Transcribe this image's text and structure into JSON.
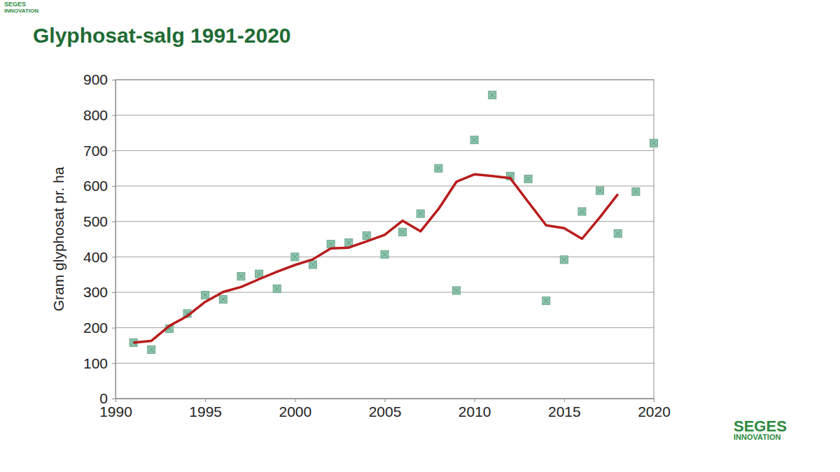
{
  "chart_data": {
    "type": "scatter",
    "title": "Glyphosat-salg 1991-2020",
    "y_label": "Gram glyphosat pr. ha",
    "logo": "SEGES",
    "logo_sub": "INNOVATION",
    "x": [
      1991,
      1992,
      1993,
      1994,
      1995,
      1996,
      1997,
      1998,
      1999,
      2000,
      2001,
      2002,
      2003,
      2004,
      2005,
      2006,
      2007,
      2008,
      2009,
      2010,
      2011,
      2012,
      2013,
      2014,
      2015,
      2016,
      2017,
      2018,
      2019,
      2020
    ],
    "series": [
      {
        "type": "scatter",
        "marker": "square",
        "color": "#8ac7ad",
        "values": [
          158,
          138,
          197,
          240,
          292,
          280,
          345,
          352,
          310,
          400,
          378,
          436,
          440,
          460,
          407,
          470,
          522,
          650,
          305,
          730,
          857,
          628,
          620,
          276,
          392,
          528,
          587,
          466,
          584,
          721
        ]
      },
      {
        "type": "line",
        "line_style": "solid",
        "color": "#b81c1c",
        "values": [
          158,
          163,
          205,
          233,
          273,
          301,
          315,
          337,
          358,
          377,
          393,
          424,
          426,
          444,
          462,
          502,
          472,
          535,
          612,
          633,
          628,
          622,
          555,
          489,
          481,
          451,
          512,
          577,
          null,
          null
        ]
      }
    ],
    "xlim": [
      1990,
      2020
    ],
    "xticks": [
      1990,
      1995,
      2000,
      2005,
      2010,
      2015,
      2020
    ],
    "ylim": [
      0,
      900
    ],
    "yticks": [
      0,
      100,
      200,
      300,
      400,
      500,
      600,
      700,
      800,
      900
    ],
    "grid": true
  }
}
